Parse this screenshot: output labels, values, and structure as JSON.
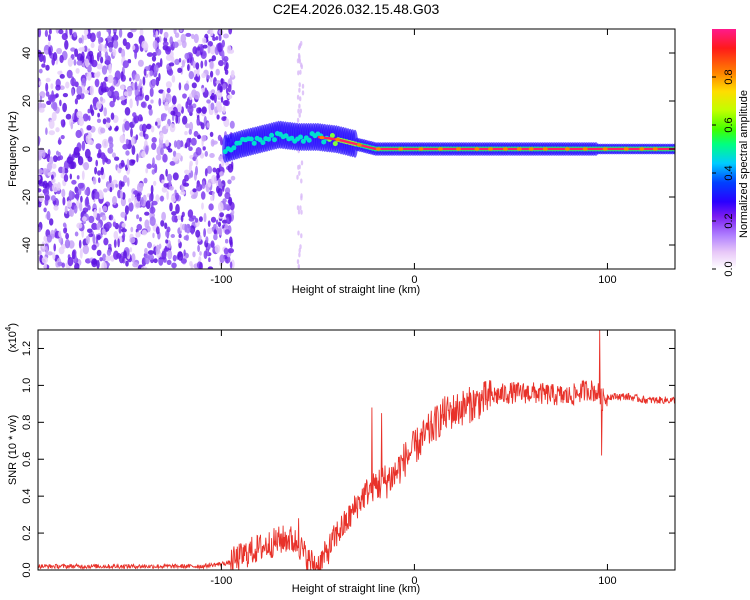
{
  "title": "C2E4.2026.032.15.48.G03",
  "chart_data": [
    {
      "type": "heatmap",
      "xlabel": "Height of straight line (km)",
      "ylabel": "Frequency (Hz)",
      "xlim": [
        -195,
        135
      ],
      "ylim": [
        -50,
        50
      ],
      "x_ticks": [
        -100,
        0,
        100
      ],
      "y_ticks": [
        -40,
        -20,
        0,
        20,
        40
      ],
      "colorbar": {
        "label": "Normalized spectral amplitude",
        "range": [
          0,
          1
        ],
        "ticks": [
          "0.0",
          "0.2",
          "0.4",
          "0.6",
          "0.8"
        ],
        "colors": [
          "#ffffff",
          "#e8c8f8",
          "#b080ff",
          "#7a1cf0",
          "#2a00ff",
          "#0040ff",
          "#00ccff",
          "#00ff80",
          "#40ff00",
          "#c0ff00",
          "#ffdd00",
          "#ff8000",
          "#ff1a1a",
          "#ff1a8c"
        ]
      },
      "noise_region_x": [
        -195,
        -98
      ],
      "signal_trace": {
        "x": [
          -98,
          -90,
          -80,
          -70,
          -60,
          -50,
          -40,
          -30,
          -20,
          -10,
          0,
          10,
          20,
          50,
          90,
          135
        ],
        "y": [
          0,
          2,
          4,
          6,
          5,
          5,
          4,
          2,
          0,
          0,
          0,
          0,
          0,
          0,
          0,
          0
        ]
      }
    },
    {
      "type": "line",
      "xlabel": "Height of straight line (km)",
      "ylabel": "SNR (10 * v/v)",
      "y_multiplier": "(x10",
      "y_multiplier_exp": "4",
      "xlim": [
        -195,
        135
      ],
      "ylim": [
        0,
        1.3
      ],
      "x_ticks": [
        -100,
        0,
        100
      ],
      "y_ticks": [
        "0.0",
        "0.2",
        "0.4",
        "0.6",
        "0.8",
        "1.0",
        "1.2"
      ],
      "color": "#e8322a",
      "series": [
        {
          "x": [
            -195,
            -110,
            -95,
            -85,
            -75,
            -70,
            -65,
            -60,
            -55,
            -50,
            -45,
            -40,
            -35,
            -30,
            -25,
            -20,
            -15,
            -10,
            -5,
            0,
            5,
            10,
            15,
            20,
            30,
            40,
            50,
            60,
            70,
            80,
            85,
            90,
            95,
            97,
            100,
            110,
            120,
            135
          ],
          "values": [
            0.02,
            0.02,
            0.04,
            0.1,
            0.14,
            0.16,
            0.17,
            0.14,
            0.05,
            0.02,
            0.1,
            0.2,
            0.26,
            0.35,
            0.42,
            0.46,
            0.48,
            0.52,
            0.6,
            0.66,
            0.72,
            0.78,
            0.84,
            0.86,
            0.9,
            0.94,
            0.96,
            0.96,
            0.95,
            0.94,
            0.96,
            0.98,
            0.96,
            0.92,
            0.94,
            0.94,
            0.92,
            0.92
          ]
        }
      ],
      "spikes": [
        {
          "x": -60,
          "value": 0.28
        },
        {
          "x": -22,
          "value": 0.88
        },
        {
          "x": -17,
          "value": 0.85
        },
        {
          "x": 96,
          "value": 1.3
        },
        {
          "x": 97,
          "value": 0.62
        }
      ]
    }
  ]
}
